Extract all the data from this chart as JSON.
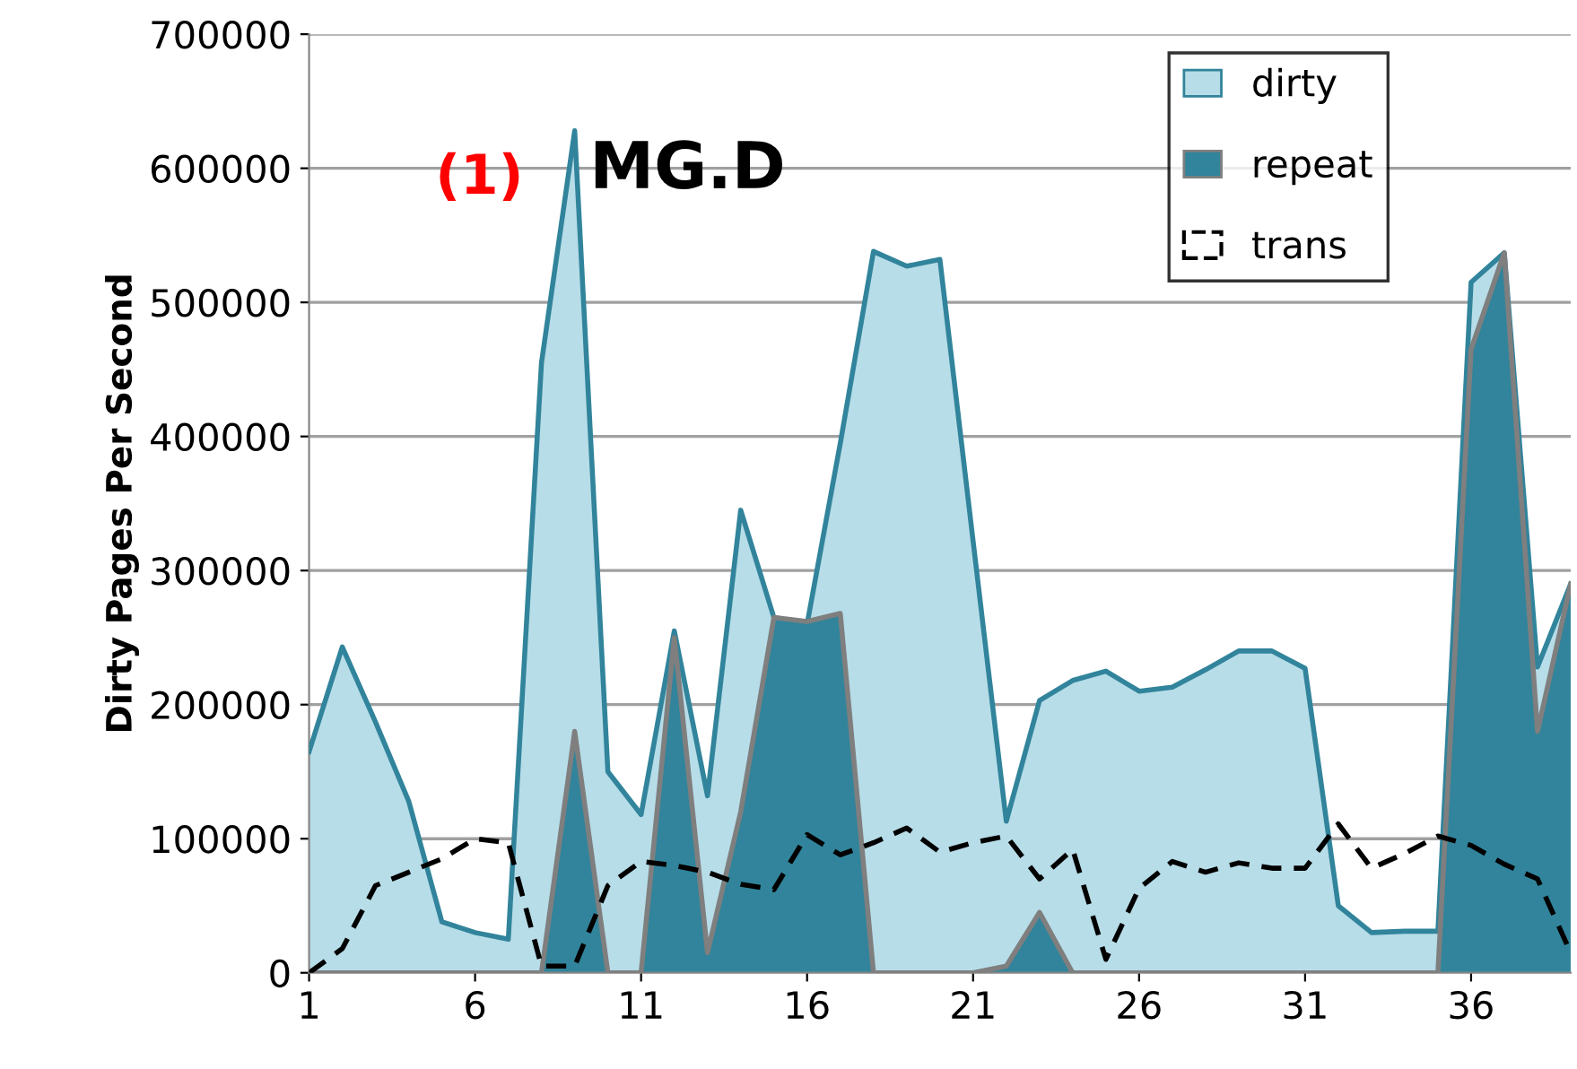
{
  "chart_data": {
    "type": "area",
    "title": "MG.D",
    "ylabel": "Dirty Pages Per Second",
    "annotations": [
      "(1)"
    ],
    "x": [
      1,
      2,
      3,
      4,
      5,
      6,
      7,
      8,
      9,
      10,
      11,
      12,
      13,
      14,
      15,
      16,
      17,
      18,
      19,
      20,
      21,
      22,
      23,
      24,
      25,
      26,
      27,
      28,
      29,
      30,
      31,
      32,
      33,
      34,
      35,
      36,
      37,
      38,
      39
    ],
    "series": [
      {
        "name": "dirty",
        "color": "#b7dde8",
        "values": [
          165000,
          243000,
          187000,
          128000,
          38000,
          30000,
          25000,
          455000,
          628000,
          150000,
          118000,
          255000,
          132000,
          345000,
          265000,
          260000,
          395000,
          538000,
          527000,
          532000,
          322000,
          113000,
          203000,
          218000,
          225000,
          210000,
          213000,
          226000,
          240000,
          240000,
          227000,
          50000,
          30000,
          31000,
          31000,
          515000,
          537000,
          228000,
          290000
        ]
      },
      {
        "name": "repeat",
        "color": "#31849b",
        "values": [
          0,
          0,
          0,
          0,
          0,
          0,
          0,
          0,
          180000,
          0,
          0,
          250000,
          15000,
          120000,
          265000,
          262000,
          268000,
          0,
          0,
          0,
          0,
          5000,
          45000,
          0,
          0,
          0,
          0,
          0,
          0,
          0,
          0,
          0,
          0,
          0,
          0,
          465000,
          537000,
          180000,
          290000
        ]
      },
      {
        "name": "trans",
        "type": "line",
        "color": "#000000",
        "line_style": "dashed",
        "values": [
          0,
          18000,
          65000,
          75000,
          85000,
          100000,
          97000,
          5000,
          5000,
          65000,
          83000,
          80000,
          75000,
          66000,
          62000,
          103000,
          88000,
          97000,
          108000,
          90000,
          97000,
          102000,
          70000,
          92000,
          10000,
          63000,
          83000,
          75000,
          82000,
          78000,
          78000,
          111000,
          78000,
          89000,
          102000,
          95000,
          81000,
          70000,
          15000
        ]
      }
    ],
    "xlim": [
      1,
      39
    ],
    "xticks": [
      1,
      6,
      11,
      16,
      21,
      26,
      31,
      36
    ],
    "ylim": [
      0,
      700000
    ],
    "yticks": [
      0,
      100000,
      200000,
      300000,
      400000,
      500000,
      600000,
      700000
    ],
    "grid": "y",
    "legend": "top right"
  }
}
